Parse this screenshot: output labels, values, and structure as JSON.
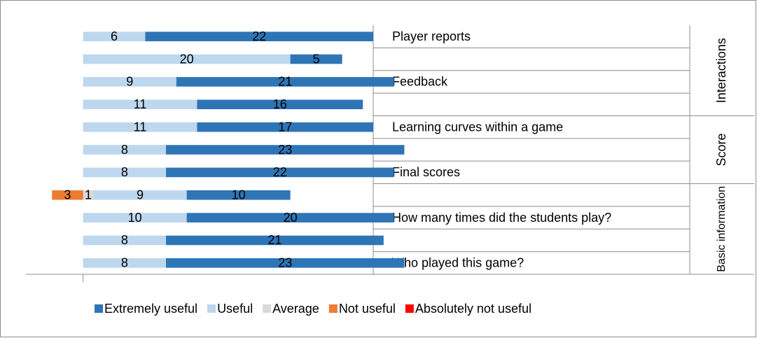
{
  "chart_data": {
    "type": "diverging_bar",
    "categories": [
      "Player reports",
      null,
      "Feedback",
      null,
      "Learning curves within a game",
      null,
      "Final scores",
      null,
      "How many times did the students play?",
      null,
      "Who played this game?"
    ],
    "groups": [
      {
        "label": "Interactions",
        "rows": [
          0,
          3
        ]
      },
      {
        "label": "Score",
        "rows": [
          4,
          6
        ]
      },
      {
        "label": "Basic information",
        "rows": [
          7,
          10
        ]
      }
    ],
    "series": [
      {
        "name": "Extremely useful",
        "color": "#2e75b6",
        "side": "right",
        "values": [
          22,
          5,
          21,
          16,
          17,
          23,
          22,
          10,
          20,
          21,
          23
        ]
      },
      {
        "name": "Useful",
        "color": "#bdd7ee",
        "side": "right",
        "values": [
          6,
          20,
          9,
          11,
          11,
          8,
          8,
          9,
          10,
          8,
          8
        ]
      },
      {
        "name": "Average",
        "color": "#d9d9d9",
        "side": "right",
        "values": [
          null,
          null,
          null,
          null,
          null,
          null,
          null,
          1,
          null,
          null,
          null
        ]
      },
      {
        "name": "Not useful",
        "color": "#ed7d31",
        "side": "left",
        "values": [
          null,
          null,
          null,
          null,
          null,
          null,
          null,
          3,
          null,
          null,
          null
        ]
      },
      {
        "name": "Absolutely not useful",
        "color": "#ff0000",
        "side": "left",
        "values": [
          null,
          null,
          null,
          null,
          null,
          null,
          null,
          null,
          null,
          null,
          null
        ]
      }
    ],
    "xlim": [
      -4.3,
      28
    ]
  }
}
